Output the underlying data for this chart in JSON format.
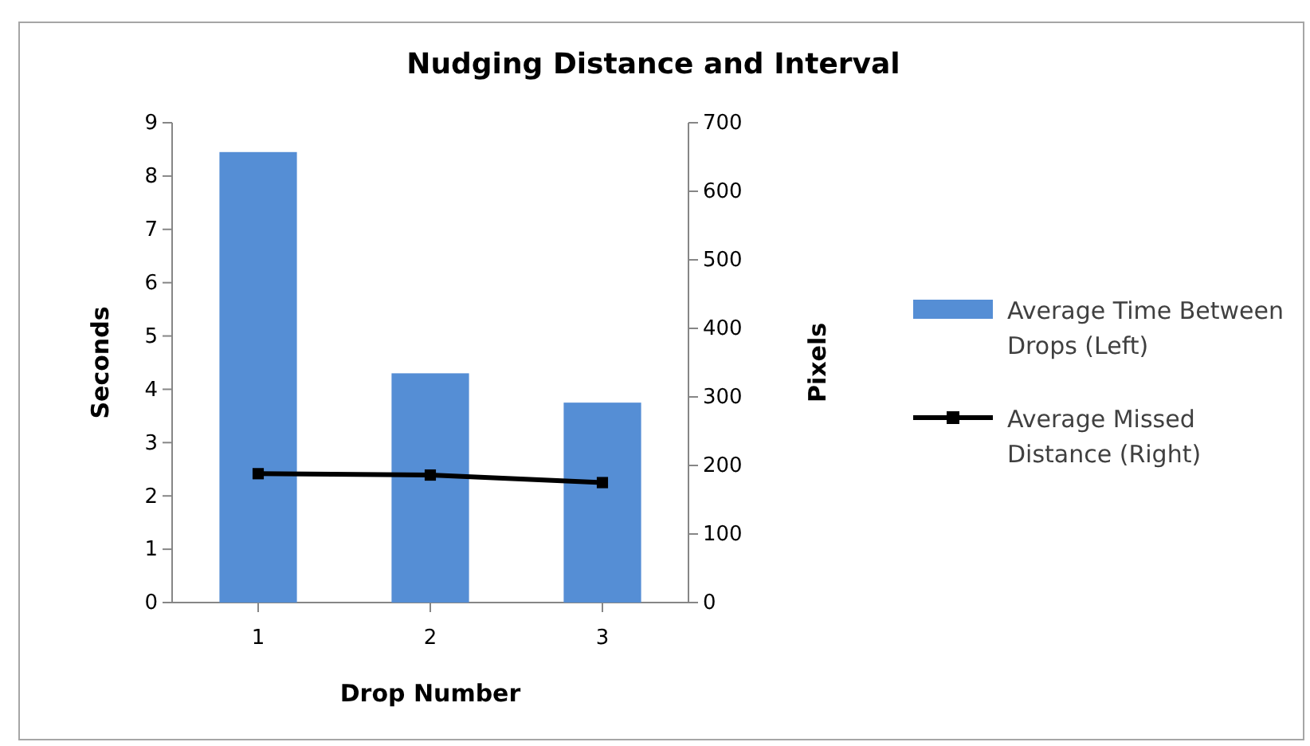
{
  "chart_data": {
    "type": "bar",
    "title": "Nudging Distance and Interval",
    "xlabel": "Drop Number",
    "ylabel": "Seconds",
    "y2label": "Pixels",
    "categories": [
      "1",
      "2",
      "3"
    ],
    "series": [
      {
        "name": "Average Time Between Drops (Left)",
        "color": "#558ed5",
        "values": [
          8.45,
          4.3,
          3.75
        ]
      },
      {
        "name": "Average Missed Distance (Right)",
        "type": "line",
        "axis": "y2",
        "color": "#000000",
        "marker": "square",
        "values": [
          188,
          186,
          175
        ]
      }
    ],
    "ylim": [
      0,
      9
    ],
    "yticks": [
      0,
      1,
      2,
      3,
      4,
      5,
      6,
      7,
      8,
      9
    ],
    "y2lim": [
      0,
      700
    ],
    "y2ticks": [
      0,
      100,
      200,
      300,
      400,
      500,
      600,
      700
    ],
    "grid": false,
    "legend": "right"
  }
}
